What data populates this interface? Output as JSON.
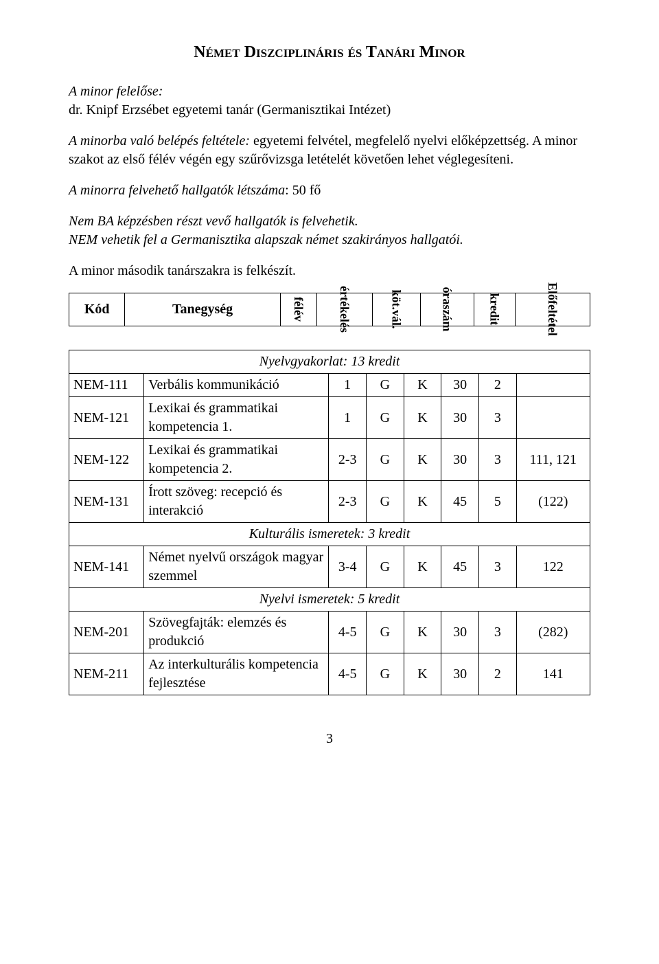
{
  "title": "Német Diszciplináris és Tanári Minor",
  "intro": {
    "felelos_label": "A minor felelőse:",
    "felelos_value": "dr. Knipf Erzsébet egyetemi tanár (Germanisztikai Intézet)",
    "feltetel_label": "A minorba való belépés feltétele:",
    "feltetel_value": " egyetemi felvétel, megfelelő nyelvi előképzettség. A minor szakot az első félév végén egy szűrővizsga letételét követően lehet véglegesíteni.",
    "letszam_label": "A minorra felvehető hallgatók létszáma",
    "letszam_value": ": 50 fő",
    "note1": "Nem BA képzésben részt vevő hallgatók is felvehetik.",
    "note2": "NEM vehetik fel a Germanisztika alapszak német szakirányos hallgatói.",
    "note3": "A minor második tanárszakra is felkészít."
  },
  "headers": {
    "kod": "Kód",
    "tanegyseg": "Tanegység",
    "felev": "félév",
    "ertekeles": "értékelés",
    "kotval": "köt.vál.",
    "oraszam": "óraszám",
    "kredit": "kredit",
    "elofeltetel": "Előfeltétel"
  },
  "sections": [
    {
      "title": "Nyelvgyakorlat: 13 kredit",
      "rows": [
        {
          "code": "NEM-111",
          "name": "Verbális kommunikáció",
          "sem": "1",
          "eval": "G",
          "kv": "K",
          "hrs": "30",
          "cr": "2",
          "pre": ""
        },
        {
          "code": "NEM-121",
          "name": "Lexikai és grammatikai kompetencia 1.",
          "sem": "1",
          "eval": "G",
          "kv": "K",
          "hrs": "30",
          "cr": "3",
          "pre": ""
        },
        {
          "code": "NEM-122",
          "name": "Lexikai és grammatikai kompetencia 2.",
          "sem": "2-3",
          "eval": "G",
          "kv": "K",
          "hrs": "30",
          "cr": "3",
          "pre": "111, 121"
        },
        {
          "code": "NEM-131",
          "name": "Írott szöveg: recepció és interakció",
          "sem": "2-3",
          "eval": "G",
          "kv": "K",
          "hrs": "45",
          "cr": "5",
          "pre": "(122)"
        }
      ]
    },
    {
      "title": "Kulturális ismeretek: 3 kredit",
      "rows": [
        {
          "code": "NEM-141",
          "name": "Német nyelvű országok magyar szemmel",
          "sem": "3-4",
          "eval": "G",
          "kv": "K",
          "hrs": "45",
          "cr": "3",
          "pre": "122"
        }
      ]
    },
    {
      "title": "Nyelvi ismeretek: 5 kredit",
      "rows": [
        {
          "code": "NEM-201",
          "name": "Szövegfajták: elemzés és produkció",
          "sem": "4-5",
          "eval": "G",
          "kv": "K",
          "hrs": "30",
          "cr": "3",
          "pre": "(282)"
        },
        {
          "code": "NEM-211",
          "name": "Az interkulturális kompetencia fejlesztése",
          "sem": "4-5",
          "eval": "G",
          "kv": "K",
          "hrs": "30",
          "cr": "2",
          "pre": "141"
        }
      ]
    }
  ],
  "page_number": "3"
}
